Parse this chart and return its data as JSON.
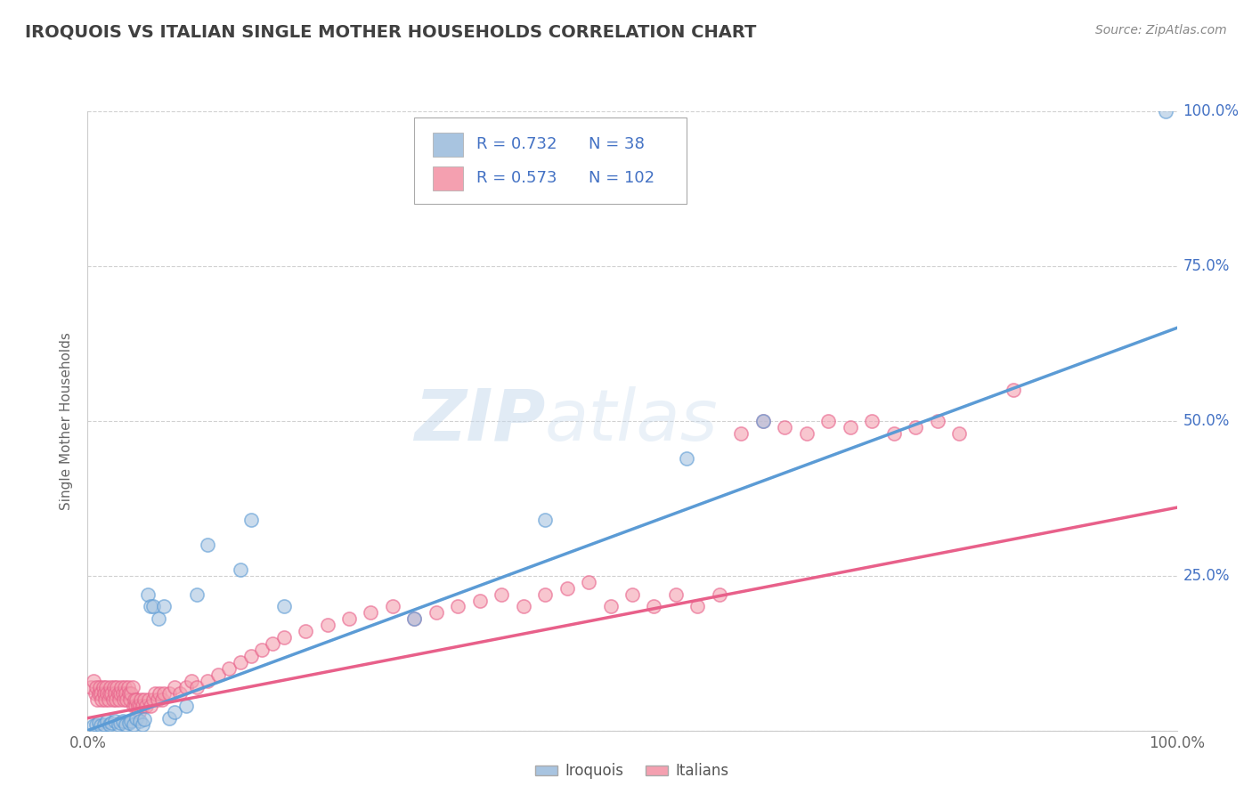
{
  "title": "IROQUOIS VS ITALIAN SINGLE MOTHER HOUSEHOLDS CORRELATION CHART",
  "source_text": "Source: ZipAtlas.com",
  "ylabel": "Single Mother Households",
  "watermark_zip": "ZIP",
  "watermark_atlas": "atlas",
  "legend_iroquois_R": "0.732",
  "legend_iroquois_N": "38",
  "legend_italians_R": "0.573",
  "legend_italians_N": "102",
  "legend_label_iroquois": "Iroquois",
  "legend_label_italians": "Italians",
  "xlim": [
    0.0,
    1.0
  ],
  "ylim": [
    0.0,
    1.0
  ],
  "color_iroquois": "#a8c4e0",
  "color_italians": "#f4a0b0",
  "line_color_iroquois": "#5b9bd5",
  "line_color_italians": "#e8608a",
  "background_color": "#ffffff",
  "grid_color": "#cccccc",
  "title_color": "#404040",
  "label_color": "#4472c4",
  "iroquois_x": [
    0.005,
    0.008,
    0.01,
    0.012,
    0.015,
    0.018,
    0.02,
    0.022,
    0.025,
    0.028,
    0.03,
    0.032,
    0.035,
    0.038,
    0.04,
    0.042,
    0.045,
    0.048,
    0.05,
    0.052,
    0.055,
    0.058,
    0.06,
    0.065,
    0.07,
    0.075,
    0.08,
    0.09,
    0.1,
    0.11,
    0.14,
    0.15,
    0.18,
    0.3,
    0.42,
    0.55,
    0.62,
    0.99
  ],
  "iroquois_y": [
    0.008,
    0.01,
    0.012,
    0.008,
    0.01,
    0.015,
    0.01,
    0.012,
    0.015,
    0.01,
    0.012,
    0.015,
    0.01,
    0.012,
    0.015,
    0.01,
    0.02,
    0.015,
    0.01,
    0.018,
    0.22,
    0.2,
    0.2,
    0.18,
    0.2,
    0.02,
    0.03,
    0.04,
    0.22,
    0.3,
    0.26,
    0.34,
    0.2,
    0.18,
    0.34,
    0.44,
    0.5,
    1.0
  ],
  "italians_x": [
    0.003,
    0.005,
    0.007,
    0.008,
    0.009,
    0.01,
    0.011,
    0.012,
    0.013,
    0.014,
    0.015,
    0.016,
    0.017,
    0.018,
    0.019,
    0.02,
    0.021,
    0.022,
    0.023,
    0.024,
    0.025,
    0.026,
    0.027,
    0.028,
    0.029,
    0.03,
    0.031,
    0.032,
    0.033,
    0.034,
    0.035,
    0.036,
    0.037,
    0.038,
    0.039,
    0.04,
    0.041,
    0.042,
    0.043,
    0.044,
    0.045,
    0.046,
    0.047,
    0.048,
    0.049,
    0.05,
    0.052,
    0.054,
    0.056,
    0.058,
    0.06,
    0.062,
    0.064,
    0.066,
    0.068,
    0.07,
    0.075,
    0.08,
    0.085,
    0.09,
    0.095,
    0.1,
    0.11,
    0.12,
    0.13,
    0.14,
    0.15,
    0.16,
    0.17,
    0.18,
    0.2,
    0.22,
    0.24,
    0.26,
    0.28,
    0.3,
    0.32,
    0.34,
    0.36,
    0.38,
    0.4,
    0.42,
    0.44,
    0.46,
    0.48,
    0.5,
    0.52,
    0.54,
    0.56,
    0.58,
    0.6,
    0.62,
    0.64,
    0.66,
    0.68,
    0.7,
    0.72,
    0.74,
    0.76,
    0.78,
    0.8,
    0.85
  ],
  "italians_y": [
    0.07,
    0.08,
    0.06,
    0.07,
    0.05,
    0.06,
    0.07,
    0.06,
    0.05,
    0.07,
    0.06,
    0.05,
    0.07,
    0.06,
    0.05,
    0.06,
    0.07,
    0.06,
    0.05,
    0.07,
    0.06,
    0.05,
    0.07,
    0.06,
    0.05,
    0.06,
    0.07,
    0.06,
    0.05,
    0.07,
    0.06,
    0.05,
    0.07,
    0.06,
    0.05,
    0.06,
    0.07,
    0.04,
    0.05,
    0.04,
    0.05,
    0.04,
    0.03,
    0.04,
    0.05,
    0.04,
    0.05,
    0.04,
    0.05,
    0.04,
    0.05,
    0.06,
    0.05,
    0.06,
    0.05,
    0.06,
    0.06,
    0.07,
    0.06,
    0.07,
    0.08,
    0.07,
    0.08,
    0.09,
    0.1,
    0.11,
    0.12,
    0.13,
    0.14,
    0.15,
    0.16,
    0.17,
    0.18,
    0.19,
    0.2,
    0.18,
    0.19,
    0.2,
    0.21,
    0.22,
    0.2,
    0.22,
    0.23,
    0.24,
    0.2,
    0.22,
    0.2,
    0.22,
    0.2,
    0.22,
    0.48,
    0.5,
    0.49,
    0.48,
    0.5,
    0.49,
    0.5,
    0.48,
    0.49,
    0.5,
    0.48,
    0.55
  ]
}
